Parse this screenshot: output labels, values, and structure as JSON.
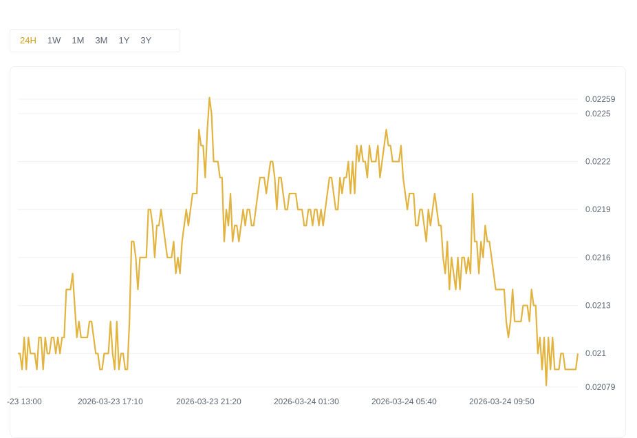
{
  "range_tabs": [
    {
      "label": "24H",
      "active": true
    },
    {
      "label": "1W",
      "active": false
    },
    {
      "label": "1M",
      "active": false
    },
    {
      "label": "3M",
      "active": false
    },
    {
      "label": "1Y",
      "active": false
    },
    {
      "label": "3Y",
      "active": false
    }
  ],
  "colors": {
    "line": "#e2b43f",
    "active_tab": "#d4a11e",
    "grid": "#eef0f3",
    "tick_text": "#5e6673"
  },
  "chart_data": {
    "type": "line",
    "title": "",
    "xlabel": "",
    "ylabel": "",
    "ylim": [
      0.02079,
      0.02259
    ],
    "ytick_labels": [
      "0.02259",
      "0.0225",
      "0.0222",
      "0.0219",
      "0.0216",
      "0.0213",
      "0.021",
      "0.02079"
    ],
    "yticks": [
      0.02259,
      0.0225,
      0.0222,
      0.0219,
      0.0216,
      0.0213,
      0.021,
      0.02079
    ],
    "xtick_labels": [
      "-23 13:00",
      "2026-03-23 17:10",
      "2026-03-23 21:20",
      "2026-03-24 01:30",
      "2026-03-24 05:40",
      "2026-03-24 09:50"
    ],
    "grid": true,
    "y_axis_position": "right",
    "series": [
      {
        "values": [
          0.021,
          0.021,
          0.0209,
          0.0211,
          0.0209,
          0.0211,
          0.021,
          0.021,
          0.021,
          0.0209,
          0.0211,
          0.0211,
          0.0209,
          0.0211,
          0.021,
          0.021,
          0.0211,
          0.0211,
          0.021,
          0.0211,
          0.021,
          0.0211,
          0.0211,
          0.0214,
          0.0214,
          0.0214,
          0.0215,
          0.0213,
          0.0211,
          0.0212,
          0.0211,
          0.0211,
          0.0211,
          0.0211,
          0.0212,
          0.0212,
          0.0211,
          0.021,
          0.021,
          0.0209,
          0.0209,
          0.021,
          0.021,
          0.021,
          0.0212,
          0.021,
          0.0209,
          0.0212,
          0.0209,
          0.021,
          0.021,
          0.0209,
          0.0209,
          0.0212,
          0.0217,
          0.0217,
          0.0216,
          0.0214,
          0.0216,
          0.0216,
          0.0216,
          0.0216,
          0.0219,
          0.0219,
          0.0218,
          0.0216,
          0.0218,
          0.0218,
          0.0219,
          0.0218,
          0.0217,
          0.0216,
          0.0216,
          0.0216,
          0.0217,
          0.0215,
          0.0216,
          0.0215,
          0.0217,
          0.0218,
          0.0219,
          0.0218,
          0.0219,
          0.022,
          0.022,
          0.022,
          0.0224,
          0.0223,
          0.0223,
          0.0221,
          0.0224,
          0.0226,
          0.0225,
          0.0222,
          0.0222,
          0.0222,
          0.0221,
          0.0221,
          0.0217,
          0.0219,
          0.0218,
          0.022,
          0.0217,
          0.0218,
          0.0218,
          0.0217,
          0.0218,
          0.0219,
          0.0218,
          0.0219,
          0.0219,
          0.0218,
          0.0218,
          0.0219,
          0.022,
          0.0221,
          0.0221,
          0.0221,
          0.022,
          0.0221,
          0.0222,
          0.0222,
          0.0221,
          0.0219,
          0.0221,
          0.0221,
          0.022,
          0.0219,
          0.0219,
          0.022,
          0.022,
          0.022,
          0.022,
          0.0219,
          0.0219,
          0.0219,
          0.0218,
          0.0218,
          0.0219,
          0.0219,
          0.0218,
          0.0219,
          0.0219,
          0.0218,
          0.0219,
          0.0218,
          0.0219,
          0.022,
          0.0221,
          0.0221,
          0.022,
          0.0219,
          0.0219,
          0.0221,
          0.022,
          0.0221,
          0.0221,
          0.0222,
          0.022,
          0.0222,
          0.022,
          0.0223,
          0.0222,
          0.0223,
          0.0222,
          0.0222,
          0.0221,
          0.0223,
          0.0222,
          0.0222,
          0.0222,
          0.0223,
          0.0221,
          0.0222,
          0.0223,
          0.0224,
          0.0223,
          0.0223,
          0.0222,
          0.0222,
          0.0222,
          0.0222,
          0.0223,
          0.0221,
          0.022,
          0.0219,
          0.022,
          0.022,
          0.022,
          0.0218,
          0.0218,
          0.0219,
          0.0219,
          0.0218,
          0.0217,
          0.0219,
          0.0218,
          0.0219,
          0.022,
          0.0219,
          0.0218,
          0.0218,
          0.0216,
          0.0215,
          0.0217,
          0.0214,
          0.0216,
          0.0215,
          0.0214,
          0.0216,
          0.0214,
          0.0216,
          0.0216,
          0.0215,
          0.0216,
          0.0215,
          0.022,
          0.0217,
          0.0217,
          0.0215,
          0.0217,
          0.0216,
          0.0218,
          0.0217,
          0.0217,
          0.0216,
          0.0215,
          0.0214,
          0.0214,
          0.0214,
          0.0214,
          0.0214,
          0.0212,
          0.0211,
          0.0212,
          0.0214,
          0.0212,
          0.0212,
          0.0212,
          0.0212,
          0.0213,
          0.0213,
          0.0213,
          0.0212,
          0.0214,
          0.0213,
          0.0213,
          0.021,
          0.0211,
          0.0209,
          0.0211,
          0.0208,
          0.0211,
          0.0209,
          0.0211,
          0.0209,
          0.0209,
          0.0209,
          0.021,
          0.021,
          0.0209,
          0.0209,
          0.0209,
          0.0209,
          0.0209,
          0.0209,
          0.021
        ]
      }
    ]
  }
}
